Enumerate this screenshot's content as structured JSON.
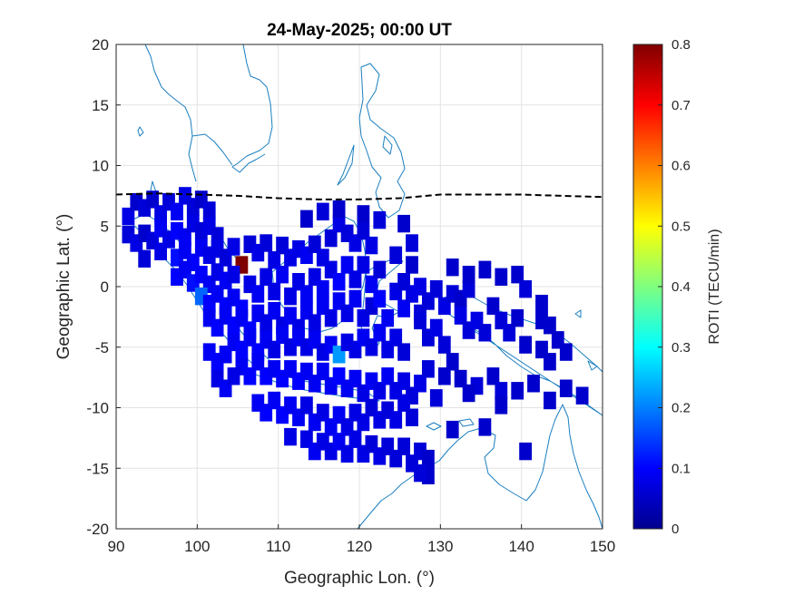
{
  "chart_data": {
    "type": "heatmap",
    "title": "24-May-2025; 00:00 UT",
    "xlabel": "Geographic Lon. (°)",
    "ylabel": "Geographic Lat. (°)",
    "xlim": [
      90,
      150
    ],
    "ylim": [
      -20,
      20
    ],
    "xticks": [
      "90",
      "100",
      "110",
      "120",
      "130",
      "140",
      "150"
    ],
    "yticks": [
      "20",
      "15",
      "10",
      "5",
      "0",
      "-5",
      "-10",
      "-15",
      "-20"
    ],
    "grid": true,
    "colorbar": {
      "label": "ROTI (TECU/min)",
      "range": [
        0,
        0.8
      ],
      "ticks": [
        "0",
        "0.1",
        "0.2",
        "0.3",
        "0.4",
        "0.5",
        "0.6",
        "0.7",
        "0.8"
      ],
      "colormap": "jet"
    },
    "magnetic_equator": {
      "style": "black dashed",
      "points": [
        [
          90,
          7.6
        ],
        [
          95,
          7.7
        ],
        [
          100,
          7.6
        ],
        [
          105,
          7.5
        ],
        [
          110,
          7.3
        ],
        [
          115,
          7.2
        ],
        [
          120,
          7.2
        ],
        [
          125,
          7.3
        ],
        [
          130,
          7.6
        ],
        [
          135,
          7.6
        ],
        [
          140,
          7.6
        ],
        [
          145,
          7.5
        ],
        [
          150,
          7.4
        ]
      ]
    },
    "roti_cells": [
      [
        91.5,
        5.8,
        0.08
      ],
      [
        92.5,
        7.0,
        0.06
      ],
      [
        93.5,
        6.5,
        0.07
      ],
      [
        94.5,
        7.2,
        0.06
      ],
      [
        95.5,
        6.0,
        0.08
      ],
      [
        96.5,
        7.0,
        0.07
      ],
      [
        97.5,
        6.2,
        0.09
      ],
      [
        98.5,
        7.5,
        0.08
      ],
      [
        99.5,
        6.6,
        0.07
      ],
      [
        100.5,
        7.2,
        0.06
      ],
      [
        101.5,
        6.3,
        0.07
      ],
      [
        91.5,
        4.3,
        0.07
      ],
      [
        92.5,
        3.6,
        0.08
      ],
      [
        93.5,
        4.4,
        0.06
      ],
      [
        94.5,
        3.8,
        0.07
      ],
      [
        95.5,
        4.8,
        0.09
      ],
      [
        96.5,
        3.9,
        0.08
      ],
      [
        97.5,
        4.6,
        0.1
      ],
      [
        98.5,
        4.1,
        0.09
      ],
      [
        99.5,
        5.2,
        0.08
      ],
      [
        100.5,
        4.6,
        0.07
      ],
      [
        101.5,
        5.0,
        0.08
      ],
      [
        102.5,
        4.2,
        0.07
      ],
      [
        93.5,
        2.3,
        0.07
      ],
      [
        95.5,
        2.9,
        0.08
      ],
      [
        97.5,
        2.4,
        0.11
      ],
      [
        98.5,
        3.0,
        0.09
      ],
      [
        99.5,
        2.0,
        0.1
      ],
      [
        100.5,
        3.2,
        0.09
      ],
      [
        101.5,
        2.6,
        0.08
      ],
      [
        102.5,
        3.1,
        0.08
      ],
      [
        103.5,
        2.4,
        0.07
      ],
      [
        104.5,
        3.3,
        0.08
      ],
      [
        105.5,
        1.8,
        0.8
      ],
      [
        97.5,
        0.8,
        0.1
      ],
      [
        98.5,
        1.4,
        0.09
      ],
      [
        99.5,
        0.3,
        0.11
      ],
      [
        100.5,
        1.0,
        0.1
      ],
      [
        101.5,
        0.2,
        0.09
      ],
      [
        102.5,
        1.2,
        0.08
      ],
      [
        103.5,
        0.5,
        0.09
      ],
      [
        104.5,
        1.0,
        0.08
      ],
      [
        106.5,
        3.5,
        0.07
      ],
      [
        107.5,
        2.8,
        0.08
      ],
      [
        108.5,
        3.6,
        0.07
      ],
      [
        109.5,
        2.2,
        0.08
      ],
      [
        110.5,
        3.4,
        0.07
      ],
      [
        111.5,
        2.4,
        0.08
      ],
      [
        112.5,
        3.1,
        0.08
      ],
      [
        113.5,
        2.6,
        0.09
      ],
      [
        114.5,
        3.5,
        0.07
      ],
      [
        115.5,
        2.4,
        0.08
      ],
      [
        116.5,
        4.0,
        0.07
      ],
      [
        117.5,
        5.2,
        0.08
      ],
      [
        118.5,
        4.4,
        0.07
      ],
      [
        119.5,
        3.6,
        0.08
      ],
      [
        120.5,
        4.6,
        0.07
      ],
      [
        121.5,
        3.4,
        0.08
      ],
      [
        113.5,
        5.6,
        0.06
      ],
      [
        115.5,
        6.2,
        0.07
      ],
      [
        117.5,
        6.4,
        0.06
      ],
      [
        120.5,
        6.0,
        0.06
      ],
      [
        122.5,
        5.5,
        0.07
      ],
      [
        125.5,
        5.2,
        0.06
      ],
      [
        126.5,
        3.6,
        0.07
      ],
      [
        124.5,
        2.6,
        0.07
      ],
      [
        126.5,
        1.8,
        0.06
      ],
      [
        100.5,
        -0.8,
        0.18
      ],
      [
        101.5,
        -1.4,
        0.1
      ],
      [
        102.5,
        -0.6,
        0.09
      ],
      [
        103.5,
        -1.6,
        0.1
      ],
      [
        104.5,
        -0.9,
        0.09
      ],
      [
        105.5,
        -1.8,
        0.1
      ],
      [
        106.5,
        0.2,
        0.08
      ],
      [
        107.5,
        -0.6,
        0.09
      ],
      [
        108.5,
        0.8,
        0.08
      ],
      [
        109.5,
        -0.4,
        0.08
      ],
      [
        110.5,
        1.0,
        0.09
      ],
      [
        111.5,
        -0.8,
        0.08
      ],
      [
        112.5,
        0.4,
        0.08
      ],
      [
        113.5,
        -0.6,
        0.09
      ],
      [
        114.5,
        0.8,
        0.08
      ],
      [
        115.5,
        -0.2,
        0.09
      ],
      [
        116.5,
        1.4,
        0.08
      ],
      [
        117.5,
        0.4,
        0.1
      ],
      [
        118.5,
        1.8,
        0.09
      ],
      [
        119.5,
        0.6,
        0.08
      ],
      [
        120.5,
        1.8,
        0.08
      ],
      [
        121.5,
        0.2,
        0.09
      ],
      [
        122.5,
        1.4,
        0.07
      ],
      [
        101.5,
        -2.6,
        0.09
      ],
      [
        102.5,
        -3.4,
        0.1
      ],
      [
        103.5,
        -2.4,
        0.09
      ],
      [
        104.5,
        -3.2,
        0.1
      ],
      [
        105.5,
        -2.6,
        0.09
      ],
      [
        106.5,
        -3.6,
        0.1
      ],
      [
        107.5,
        -2.2,
        0.09
      ],
      [
        108.5,
        -3.0,
        0.08
      ],
      [
        109.5,
        -2.0,
        0.09
      ],
      [
        110.5,
        -3.2,
        0.08
      ],
      [
        111.5,
        -2.4,
        0.09
      ],
      [
        112.5,
        -3.4,
        0.08
      ],
      [
        113.5,
        -2.0,
        0.09
      ],
      [
        114.5,
        -3.0,
        0.08
      ],
      [
        115.5,
        -1.6,
        0.09
      ],
      [
        116.5,
        -2.6,
        0.08
      ],
      [
        117.5,
        -1.2,
        0.09
      ],
      [
        118.5,
        -2.2,
        0.08
      ],
      [
        119.5,
        -1.0,
        0.09
      ],
      [
        120.5,
        -2.6,
        0.08
      ],
      [
        121.5,
        -1.6,
        0.07
      ],
      [
        104.5,
        -4.6,
        0.09
      ],
      [
        105.5,
        -5.2,
        0.1
      ],
      [
        106.5,
        -4.2,
        0.09
      ],
      [
        107.5,
        -5.4,
        0.1
      ],
      [
        108.5,
        -4.4,
        0.09
      ],
      [
        109.5,
        -5.2,
        0.08
      ],
      [
        110.5,
        -4.0,
        0.09
      ],
      [
        111.5,
        -5.0,
        0.08
      ],
      [
        112.5,
        -4.2,
        0.09
      ],
      [
        113.5,
        -5.0,
        0.08
      ],
      [
        114.5,
        -4.4,
        0.09
      ],
      [
        115.5,
        -5.4,
        0.08
      ],
      [
        116.5,
        -4.8,
        0.09
      ],
      [
        117.5,
        -5.6,
        0.22
      ],
      [
        118.5,
        -4.6,
        0.08
      ],
      [
        119.5,
        -5.2,
        0.08
      ],
      [
        120.5,
        -4.2,
        0.09
      ],
      [
        121.5,
        -5.0,
        0.08
      ],
      [
        122.5,
        -3.8,
        0.09
      ],
      [
        123.5,
        -5.2,
        0.08
      ],
      [
        124.5,
        -4.2,
        0.08
      ],
      [
        125.5,
        -5.4,
        0.07
      ],
      [
        122.5,
        -1.0,
        0.1
      ],
      [
        123.5,
        -2.6,
        0.09
      ],
      [
        124.5,
        -0.4,
        0.08
      ],
      [
        125.5,
        -1.8,
        0.09
      ],
      [
        126.5,
        -0.6,
        0.08
      ],
      [
        127.5,
        -2.2,
        0.07
      ],
      [
        125.5,
        0.4,
        0.07
      ],
      [
        127.5,
        0.0,
        0.08
      ],
      [
        128.5,
        -1.2,
        0.07
      ],
      [
        129.5,
        -0.2,
        0.07
      ],
      [
        130.5,
        -1.6,
        0.08
      ],
      [
        131.5,
        -0.6,
        0.07
      ],
      [
        132.5,
        -1.0,
        0.06
      ],
      [
        133.5,
        -0.2,
        0.07
      ],
      [
        127.5,
        -2.8,
        0.07
      ],
      [
        128.5,
        -4.2,
        0.07
      ],
      [
        129.5,
        -3.4,
        0.08
      ],
      [
        130.5,
        -4.8,
        0.07
      ],
      [
        132.5,
        -2.4,
        0.08
      ],
      [
        133.5,
        -3.6,
        0.07
      ],
      [
        134.5,
        -2.8,
        0.08
      ],
      [
        135.5,
        -3.8,
        0.07
      ],
      [
        136.5,
        -1.6,
        0.06
      ],
      [
        137.5,
        -2.8,
        0.07
      ],
      [
        138.5,
        -3.8,
        0.07
      ],
      [
        139.5,
        -2.6,
        0.06
      ],
      [
        140.5,
        -4.8,
        0.06
      ],
      [
        142.5,
        -2.8,
        0.06
      ],
      [
        143.5,
        -3.2,
        0.06
      ],
      [
        131.5,
        1.6,
        0.06
      ],
      [
        133.5,
        1.0,
        0.06
      ],
      [
        135.5,
        1.4,
        0.06
      ],
      [
        137.5,
        0.8,
        0.06
      ],
      [
        139.5,
        1.0,
        0.06
      ],
      [
        140.5,
        -0.2,
        0.07
      ],
      [
        142.5,
        -1.4,
        0.06
      ],
      [
        144.5,
        -4.4,
        0.06
      ],
      [
        145.5,
        -5.4,
        0.06
      ],
      [
        142.5,
        -5.2,
        0.06
      ],
      [
        143.5,
        -6.2,
        0.06
      ],
      [
        105.5,
        -6.6,
        0.09
      ],
      [
        106.5,
        -7.4,
        0.1
      ],
      [
        107.5,
        -6.2,
        0.09
      ],
      [
        108.5,
        -7.4,
        0.1
      ],
      [
        109.5,
        -6.8,
        0.09
      ],
      [
        110.5,
        -7.6,
        0.1
      ],
      [
        111.5,
        -6.8,
        0.09
      ],
      [
        112.5,
        -7.8,
        0.1
      ],
      [
        113.5,
        -7.0,
        0.09
      ],
      [
        114.5,
        -8.0,
        0.09
      ],
      [
        115.5,
        -7.0,
        0.09
      ],
      [
        116.5,
        -8.2,
        0.09
      ],
      [
        117.5,
        -7.4,
        0.1
      ],
      [
        118.5,
        -8.4,
        0.09
      ],
      [
        119.5,
        -7.6,
        0.09
      ],
      [
        120.5,
        -8.8,
        0.08
      ],
      [
        121.5,
        -7.8,
        0.09
      ],
      [
        122.5,
        -8.6,
        0.08
      ],
      [
        123.5,
        -7.4,
        0.09
      ],
      [
        124.5,
        -8.6,
        0.08
      ],
      [
        125.5,
        -7.8,
        0.08
      ],
      [
        126.5,
        -9.0,
        0.07
      ],
      [
        127.5,
        -8.0,
        0.08
      ],
      [
        101.5,
        -5.4,
        0.09
      ],
      [
        102.5,
        -6.2,
        0.1
      ],
      [
        103.5,
        -5.6,
        0.09
      ],
      [
        102.5,
        -7.6,
        0.08
      ],
      [
        103.5,
        -8.4,
        0.09
      ],
      [
        104.5,
        -7.4,
        0.08
      ],
      [
        128.5,
        -6.8,
        0.07
      ],
      [
        130.5,
        -7.4,
        0.06
      ],
      [
        131.5,
        -6.2,
        0.06
      ],
      [
        132.5,
        -7.6,
        0.06
      ],
      [
        134.5,
        -8.2,
        0.07
      ],
      [
        136.5,
        -7.4,
        0.06
      ],
      [
        137.5,
        -8.6,
        0.07
      ],
      [
        139.5,
        -8.6,
        0.06
      ],
      [
        141.5,
        -8.0,
        0.06
      ],
      [
        143.5,
        -9.4,
        0.06
      ],
      [
        145.5,
        -8.4,
        0.06
      ],
      [
        147.5,
        -9.0,
        0.06
      ],
      [
        107.5,
        -9.6,
        0.09
      ],
      [
        108.5,
        -10.4,
        0.1
      ],
      [
        109.5,
        -9.4,
        0.09
      ],
      [
        110.5,
        -10.6,
        0.1
      ],
      [
        111.5,
        -9.8,
        0.09
      ],
      [
        112.5,
        -10.8,
        0.09
      ],
      [
        113.5,
        -9.8,
        0.08
      ],
      [
        114.5,
        -11.2,
        0.09
      ],
      [
        115.5,
        -10.4,
        0.08
      ],
      [
        116.5,
        -11.6,
        0.09
      ],
      [
        117.5,
        -10.6,
        0.09
      ],
      [
        118.5,
        -11.6,
        0.08
      ],
      [
        119.5,
        -10.4,
        0.08
      ],
      [
        120.5,
        -11.2,
        0.08
      ],
      [
        121.5,
        -10.0,
        0.07
      ],
      [
        122.5,
        -11.0,
        0.08
      ],
      [
        123.5,
        -10.2,
        0.07
      ],
      [
        124.5,
        -11.0,
        0.08
      ],
      [
        125.5,
        -9.6,
        0.08
      ],
      [
        126.5,
        -10.8,
        0.07
      ],
      [
        111.5,
        -12.4,
        0.08
      ],
      [
        113.5,
        -12.6,
        0.08
      ],
      [
        114.5,
        -13.6,
        0.09
      ],
      [
        115.5,
        -12.8,
        0.08
      ],
      [
        116.5,
        -13.6,
        0.08
      ],
      [
        117.5,
        -12.8,
        0.09
      ],
      [
        118.5,
        -13.8,
        0.08
      ],
      [
        119.5,
        -12.6,
        0.08
      ],
      [
        120.5,
        -13.8,
        0.08
      ],
      [
        121.5,
        -13.0,
        0.07
      ],
      [
        122.5,
        -14.0,
        0.08
      ],
      [
        123.5,
        -13.2,
        0.07
      ],
      [
        124.5,
        -14.2,
        0.07
      ],
      [
        125.5,
        -13.2,
        0.07
      ],
      [
        126.5,
        -14.6,
        0.07
      ],
      [
        127.5,
        -13.6,
        0.07
      ],
      [
        128.5,
        -14.2,
        0.06
      ],
      [
        128.5,
        -15.6,
        0.06
      ],
      [
        127.5,
        -15.4,
        0.07
      ],
      [
        131.5,
        -11.8,
        0.06
      ],
      [
        135.5,
        -11.6,
        0.06
      ],
      [
        137.5,
        -9.8,
        0.06
      ],
      [
        140.5,
        -13.6,
        0.06
      ],
      [
        133.5,
        -8.8,
        0.06
      ],
      [
        129.5,
        -9.2,
        0.07
      ]
    ]
  }
}
